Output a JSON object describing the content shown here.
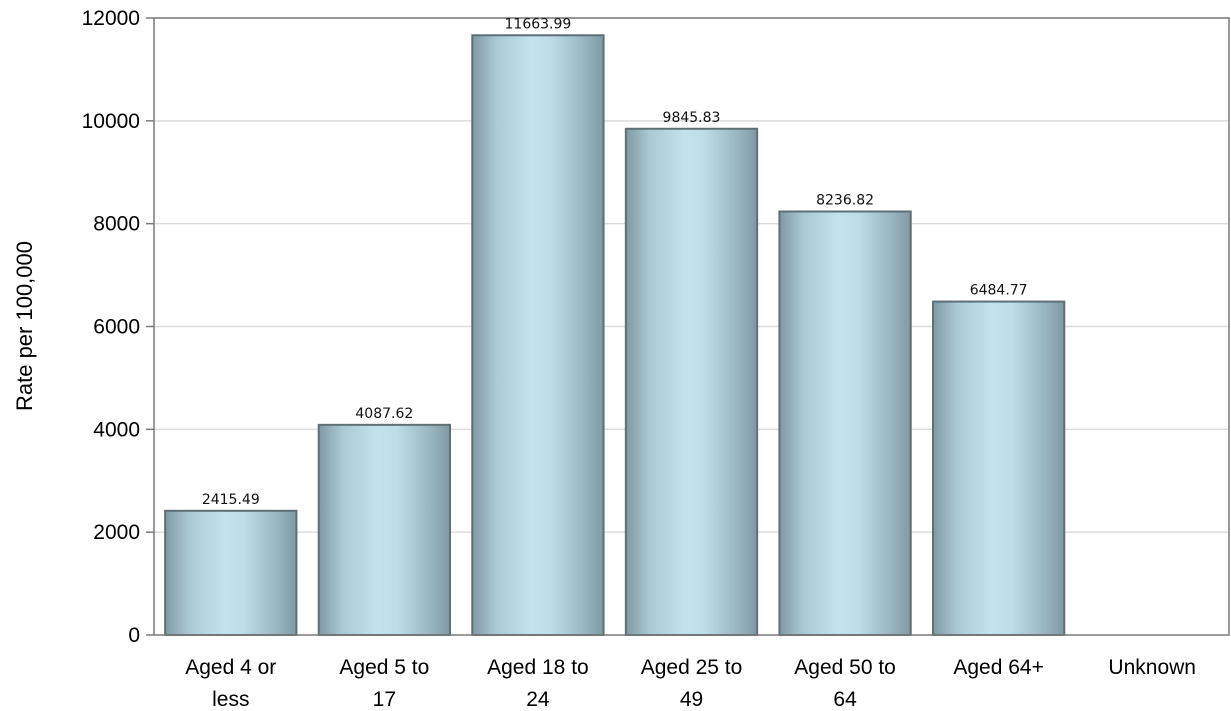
{
  "chart_data": {
    "type": "bar",
    "ylabel": "Rate per 100,000",
    "xlabel": "",
    "ylim": [
      0,
      12000
    ],
    "yticks": [
      0,
      2000,
      4000,
      6000,
      8000,
      10000,
      12000
    ],
    "categories": [
      [
        "Aged 4 or",
        "less"
      ],
      [
        "Aged 5 to",
        "17"
      ],
      [
        "Aged 18 to",
        "24"
      ],
      [
        "Aged 25 to",
        "49"
      ],
      [
        "Aged 50 to",
        "64"
      ],
      [
        "Aged 64+"
      ],
      [
        "Unknown"
      ]
    ],
    "values": [
      2415.49,
      4087.62,
      11663.99,
      9845.83,
      8236.82,
      6484.77,
      null
    ],
    "data_labels": [
      "2415.49",
      "4087.62",
      "11663.99",
      "9845.83",
      "8236.82",
      "6484.77",
      ""
    ],
    "grid": true,
    "legend": "none"
  },
  "colors": {
    "bar_edge": "#5f6f75",
    "bar_center": "#c2e3ee",
    "bar_side": "#7f99a3",
    "grid": "#dcdcdc",
    "axis": "#7a7a7a"
  }
}
